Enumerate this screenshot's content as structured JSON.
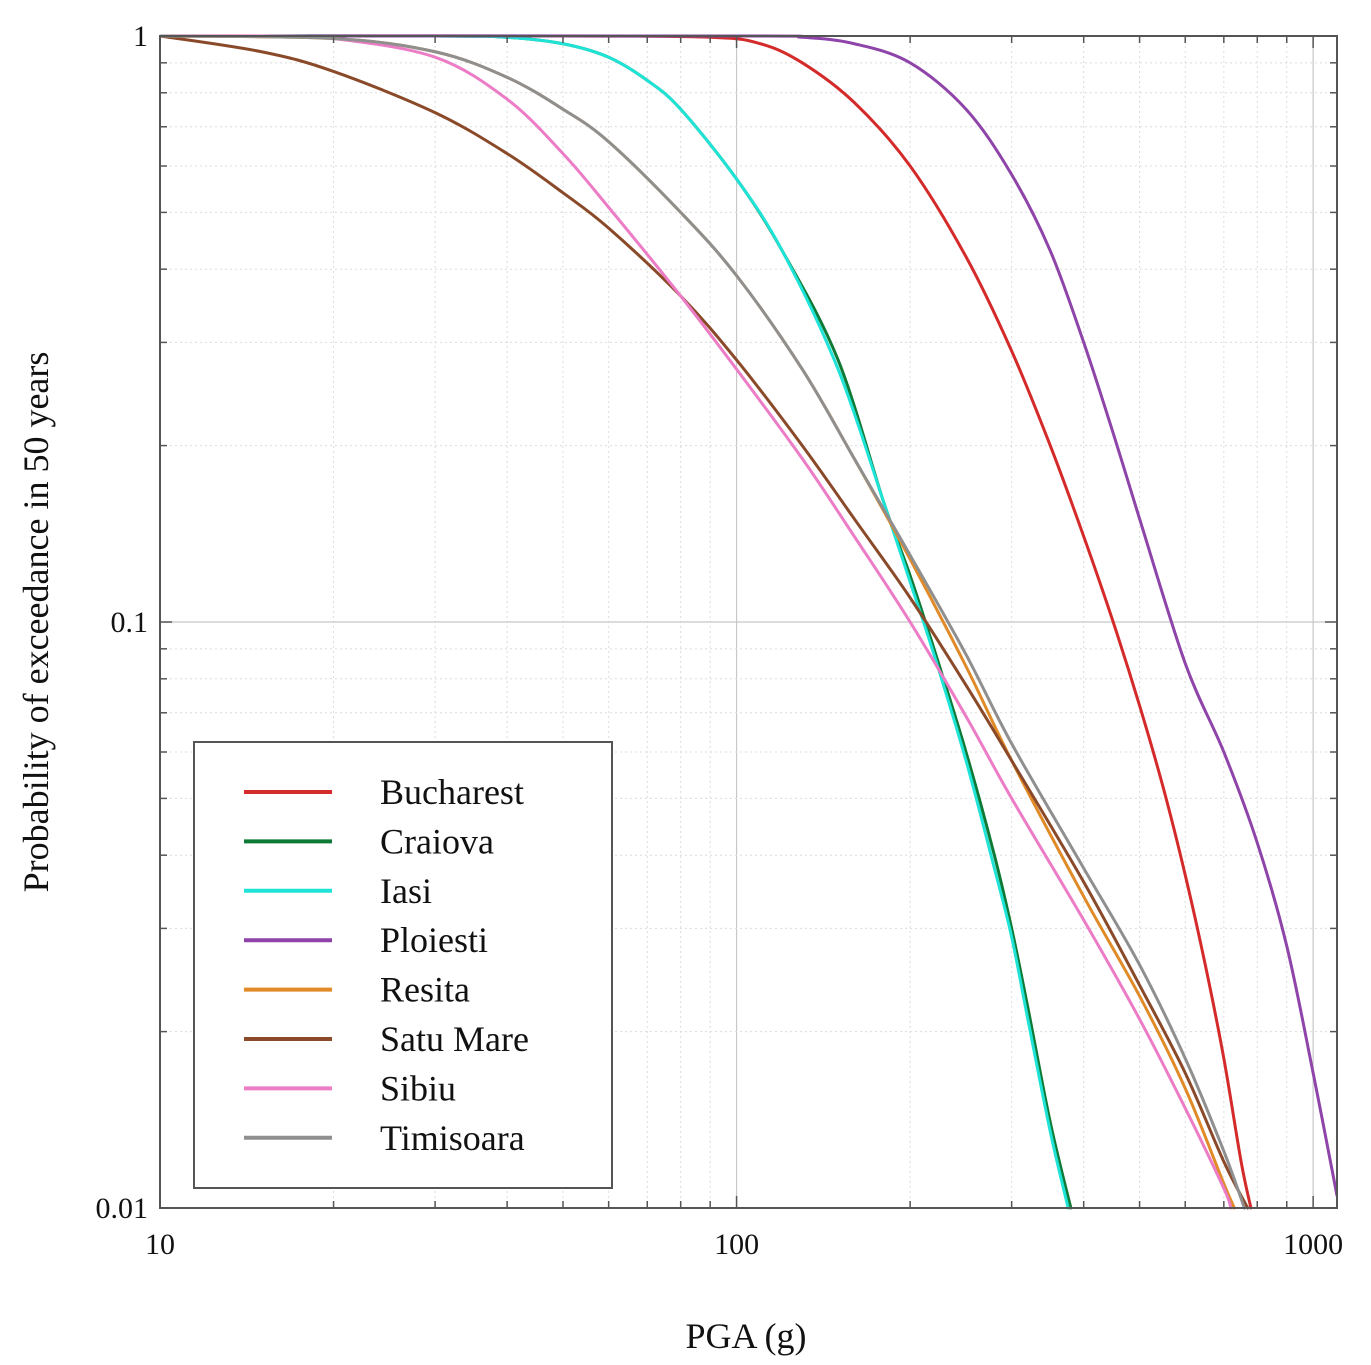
{
  "chart_data": {
    "type": "line",
    "title": "",
    "xlabel": "PGA (g)",
    "ylabel": "Probability of exceedance in 50 years",
    "xscale": "log",
    "yscale": "log",
    "xlim": [
      10,
      1100
    ],
    "ylim": [
      0.01,
      1
    ],
    "x_ticks": [
      {
        "value": 10,
        "label": "10"
      },
      {
        "value": 100,
        "label": "100"
      },
      {
        "value": 1000,
        "label": "1000"
      }
    ],
    "y_ticks": [
      {
        "value": 1,
        "label": "1"
      },
      {
        "value": 0.1,
        "label": "0.1"
      },
      {
        "value": 0.01,
        "label": "0.01"
      }
    ],
    "grid": true,
    "legend_position": "bottom-left",
    "series": [
      {
        "name": "Bucharest",
        "color": "#d42a2a",
        "x": [
          10,
          50,
          90,
          110,
          130,
          160,
          200,
          250,
          300,
          350,
          400,
          450,
          500,
          550,
          600,
          650,
          700,
          750,
          780
        ],
        "y": [
          1,
          1,
          0.995,
          0.97,
          0.9,
          0.77,
          0.6,
          0.42,
          0.29,
          0.2,
          0.14,
          0.1,
          0.072,
          0.052,
          0.037,
          0.026,
          0.018,
          0.012,
          0.01
        ]
      },
      {
        "name": "Craiova",
        "color": "#0f7a35",
        "x": [
          10,
          30,
          40,
          50,
          60,
          70,
          80,
          100,
          120,
          150,
          180,
          200,
          220,
          250,
          280,
          300,
          320,
          350,
          380
        ],
        "y": [
          1,
          1,
          0.995,
          0.97,
          0.92,
          0.84,
          0.75,
          0.57,
          0.43,
          0.28,
          0.16,
          0.12,
          0.09,
          0.06,
          0.04,
          0.03,
          0.022,
          0.014,
          0.01
        ]
      },
      {
        "name": "Iasi",
        "color": "#1fe3d6",
        "x": [
          10,
          30,
          40,
          50,
          60,
          70,
          80,
          100,
          120,
          150,
          180,
          200,
          220,
          250,
          280,
          300,
          320,
          350,
          376
        ],
        "y": [
          1,
          1,
          0.995,
          0.97,
          0.92,
          0.84,
          0.75,
          0.57,
          0.43,
          0.27,
          0.16,
          0.117,
          0.088,
          0.058,
          0.038,
          0.029,
          0.021,
          0.0135,
          0.01
        ]
      },
      {
        "name": "Ploiesti",
        "color": "#8e44a8",
        "x": [
          10,
          100,
          130,
          160,
          200,
          250,
          300,
          350,
          400,
          450,
          500,
          600,
          700,
          800,
          900,
          1000,
          1100
        ],
        "y": [
          1,
          1,
          0.995,
          0.97,
          0.9,
          0.75,
          0.58,
          0.43,
          0.3,
          0.21,
          0.15,
          0.085,
          0.06,
          0.042,
          0.028,
          0.017,
          0.0105
        ]
      },
      {
        "name": "Resita",
        "color": "#e08a28",
        "x": [
          10,
          20,
          30,
          40,
          50,
          60,
          80,
          100,
          130,
          160,
          200,
          250,
          300,
          400,
          500,
          600,
          700,
          730
        ],
        "y": [
          1,
          0.99,
          0.94,
          0.85,
          0.75,
          0.66,
          0.5,
          0.39,
          0.27,
          0.19,
          0.128,
          0.084,
          0.058,
          0.034,
          0.023,
          0.016,
          0.011,
          0.01
        ]
      },
      {
        "name": "Satu Mare",
        "color": "#8a4a2a",
        "x": [
          10,
          15,
          20,
          30,
          40,
          50,
          60,
          80,
          100,
          130,
          160,
          200,
          250,
          300,
          400,
          500,
          600,
          700,
          770
        ],
        "y": [
          1,
          0.94,
          0.87,
          0.74,
          0.63,
          0.54,
          0.47,
          0.36,
          0.28,
          0.2,
          0.15,
          0.11,
          0.078,
          0.058,
          0.036,
          0.024,
          0.017,
          0.012,
          0.01
        ]
      },
      {
        "name": "Sibiu",
        "color": "#ec7cc6",
        "x": [
          10,
          15,
          20,
          30,
          40,
          50,
          60,
          80,
          100,
          130,
          160,
          200,
          250,
          300,
          400,
          500,
          600,
          700,
          720
        ],
        "y": [
          1,
          1,
          0.99,
          0.92,
          0.78,
          0.63,
          0.51,
          0.36,
          0.27,
          0.19,
          0.14,
          0.1,
          0.069,
          0.05,
          0.031,
          0.021,
          0.0148,
          0.0108,
          0.01
        ]
      },
      {
        "name": "Timisoara",
        "color": "#8f8f8f",
        "x": [
          10,
          20,
          30,
          40,
          50,
          60,
          80,
          100,
          130,
          160,
          200,
          250,
          300,
          400,
          500,
          600,
          700,
          760
        ],
        "y": [
          1,
          0.99,
          0.94,
          0.85,
          0.75,
          0.66,
          0.5,
          0.39,
          0.27,
          0.19,
          0.13,
          0.088,
          0.062,
          0.038,
          0.026,
          0.018,
          0.0125,
          0.01
        ]
      }
    ]
  }
}
